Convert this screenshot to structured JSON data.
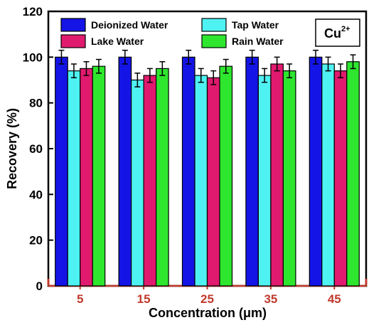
{
  "chart_data": {
    "type": "bar",
    "categories": [
      "5",
      "15",
      "25",
      "35",
      "45"
    ],
    "series": [
      {
        "name": "Deionized Water",
        "color": "#1414e6",
        "values": [
          100,
          100,
          100,
          100,
          100
        ],
        "errors": [
          3,
          3,
          3,
          3,
          3
        ]
      },
      {
        "name": "Tap Water",
        "color": "#4ff2f2",
        "values": [
          94,
          90,
          92,
          92,
          97
        ],
        "errors": [
          3,
          3,
          3,
          3,
          3
        ]
      },
      {
        "name": "Lake Water",
        "color": "#e01a6e",
        "values": [
          95,
          92,
          91,
          97,
          94
        ],
        "errors": [
          3,
          3,
          3,
          3,
          3
        ]
      },
      {
        "name": "Rain Water",
        "color": "#2ee62e",
        "values": [
          96,
          95,
          96,
          94,
          98
        ],
        "errors": [
          3,
          3,
          3,
          3,
          3
        ]
      }
    ],
    "xlabel": "Concentration (μm)",
    "ylabel": "Recovery (%)",
    "ylim": [
      0,
      120
    ],
    "yticks": [
      0,
      20,
      40,
      60,
      80,
      100,
      120
    ],
    "annotation": {
      "base": "Cu",
      "superscript": "2+"
    },
    "legend_position": "top",
    "x_tick_label_color": "#c0392b",
    "x_axis_color": "#c0392b",
    "grid": false
  }
}
